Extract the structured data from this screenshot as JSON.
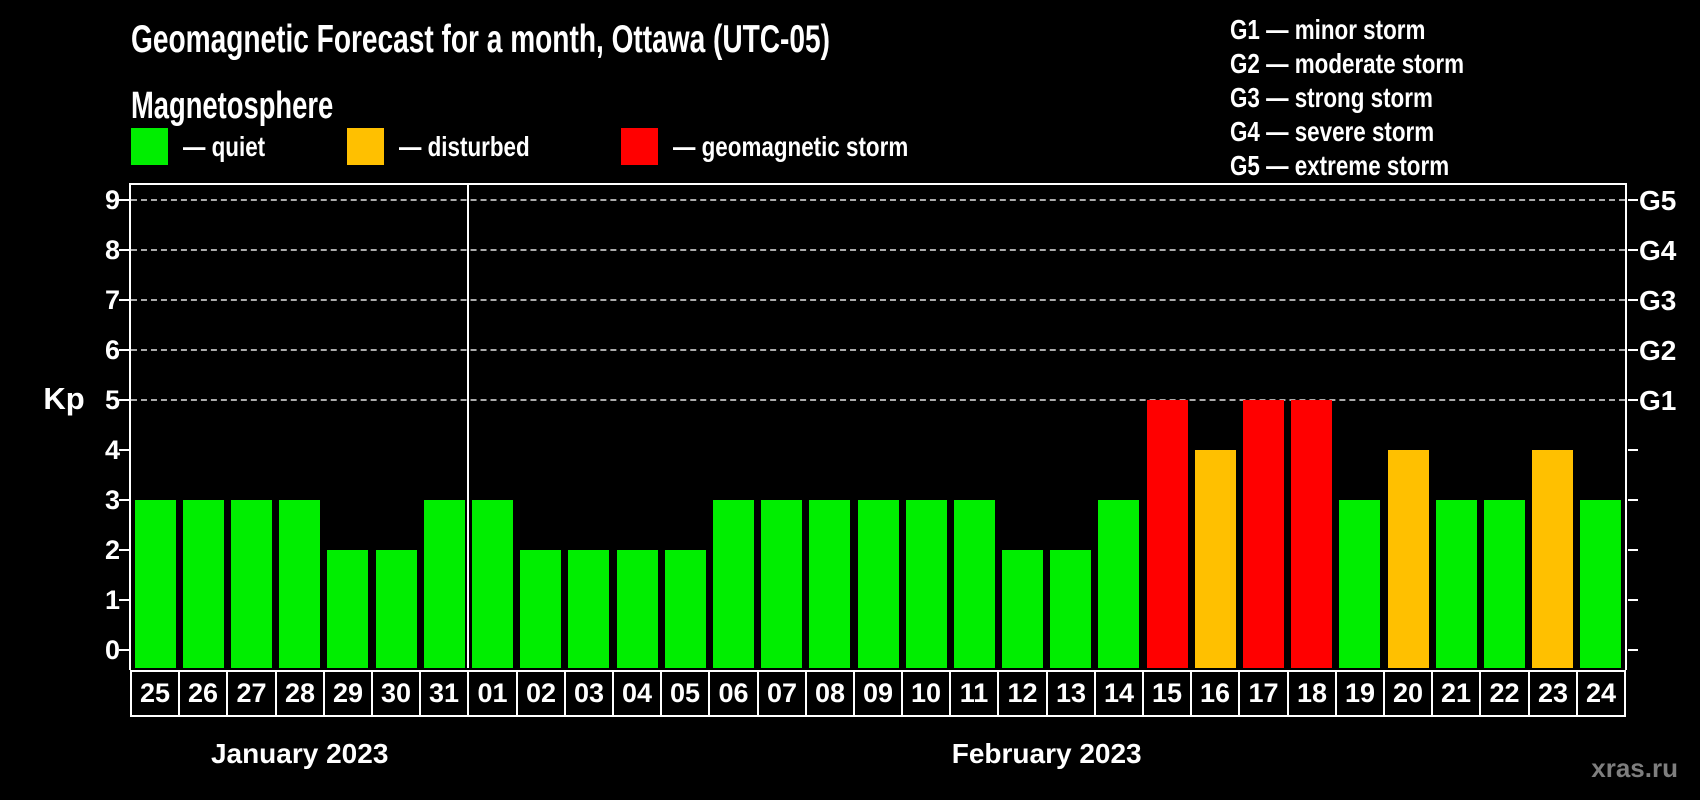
{
  "title": "Geomagnetic Forecast for a month, Ottawa (UTC-05)",
  "subtitle": "Magnetosphere",
  "legend": [
    {
      "status": "quiet",
      "label": "— quiet",
      "color": "#00ee00"
    },
    {
      "status": "disturbed",
      "label": "— disturbed",
      "color": "#ffc000"
    },
    {
      "status": "storm",
      "label": "— geomagnetic storm",
      "color": "#ff0000"
    }
  ],
  "g_scale_legend": [
    "G1 — minor storm",
    "G2 — moderate storm",
    "G3 — strong storm",
    "G4 — severe storm",
    "G5 — extreme storm"
  ],
  "watermark": "xras.ru",
  "chart_data": {
    "type": "bar",
    "title": "Geomagnetic Forecast for a month, Ottawa (UTC-05)",
    "xlabel": "",
    "ylabel": "Kp",
    "ylim": [
      0,
      9.4
    ],
    "y_ticks": [
      0,
      1,
      2,
      3,
      4,
      5,
      6,
      7,
      8,
      9
    ],
    "grid": "horizontal dashed gridlines at Kp 5-9 only",
    "gridline_levels": [
      5,
      6,
      7,
      8,
      9
    ],
    "right_axis_labels": [
      {
        "kp": 5,
        "label": "G1"
      },
      {
        "kp": 6,
        "label": "G2"
      },
      {
        "kp": 7,
        "label": "G3"
      },
      {
        "kp": 8,
        "label": "G4"
      },
      {
        "kp": 9,
        "label": "G5"
      }
    ],
    "bar_colors": {
      "quiet": "#00ee00",
      "disturbed": "#ffc000",
      "storm": "#ff0000"
    },
    "legend_position": "top-left",
    "months": [
      {
        "label": "January 2023",
        "days": [
          "25",
          "26",
          "27",
          "28",
          "29",
          "30",
          "31"
        ],
        "kp_values": [
          3,
          3,
          3,
          3,
          2,
          2,
          3
        ],
        "statuses": [
          "quiet",
          "quiet",
          "quiet",
          "quiet",
          "quiet",
          "quiet",
          "quiet"
        ]
      },
      {
        "label": "February 2023",
        "days": [
          "01",
          "02",
          "03",
          "04",
          "05",
          "06",
          "07",
          "08",
          "09",
          "10",
          "11",
          "12",
          "13",
          "14",
          "15",
          "16",
          "17",
          "18",
          "19",
          "20",
          "21",
          "22",
          "23",
          "24"
        ],
        "kp_values": [
          3,
          2,
          2,
          2,
          2,
          3,
          3,
          3,
          3,
          3,
          3,
          2,
          2,
          3,
          5,
          4,
          5,
          5,
          3,
          4,
          3,
          3,
          4,
          3
        ],
        "statuses": [
          "quiet",
          "quiet",
          "quiet",
          "quiet",
          "quiet",
          "quiet",
          "quiet",
          "quiet",
          "quiet",
          "quiet",
          "quiet",
          "quiet",
          "quiet",
          "quiet",
          "storm",
          "disturbed",
          "storm",
          "storm",
          "quiet",
          "disturbed",
          "quiet",
          "quiet",
          "disturbed",
          "quiet"
        ]
      }
    ]
  }
}
